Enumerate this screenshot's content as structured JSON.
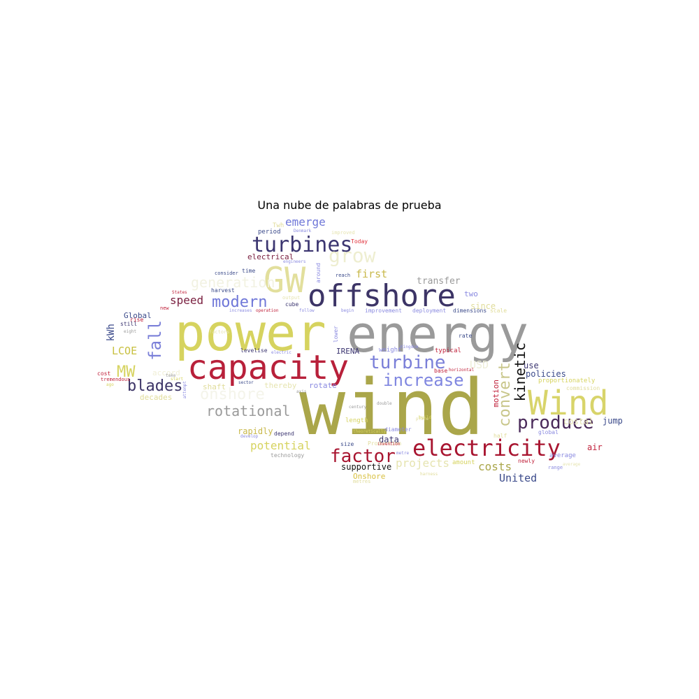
{
  "title": "Una nube de palabras de prueba",
  "words": [
    {
      "text": "wind",
      "color": "#aaa64a"
    },
    {
      "text": "power",
      "color": "#d6d35f"
    },
    {
      "text": "energy",
      "color": "#9a9a9a"
    },
    {
      "text": "capacity",
      "color": "#b8203a"
    },
    {
      "text": "offshore",
      "color": "#3c3466"
    },
    {
      "text": "Wind",
      "color": "#d8d46a"
    },
    {
      "text": "electricity",
      "color": "#a81530"
    },
    {
      "text": "GW",
      "color": "#e2df9c"
    },
    {
      "text": "turbines",
      "color": "#3b3570"
    },
    {
      "text": "turbine",
      "color": "#7a7fd8"
    },
    {
      "text": "increase",
      "color": "#7f86e0"
    },
    {
      "text": "factor",
      "color": "#a81530"
    },
    {
      "text": "produce",
      "color": "#4a2a5a"
    },
    {
      "text": "modern",
      "color": "#6f77d8"
    },
    {
      "text": "blades",
      "color": "#3c3466"
    },
    {
      "text": "rotational",
      "color": "#9a9a9a"
    },
    {
      "text": "grow",
      "color": "#eeeed0"
    },
    {
      "text": "generation",
      "color": "#f2f2e2"
    },
    {
      "text": "onshore",
      "color": "#f4f4ea"
    },
    {
      "text": "fall",
      "color": "#7a7fd8"
    },
    {
      "text": "convert",
      "color": "#c8c68a"
    },
    {
      "text": "kinetic",
      "color": "#111111"
    },
    {
      "text": "MW",
      "color": "#d6d35f"
    },
    {
      "text": "speed",
      "color": "#7a2040"
    },
    {
      "text": "emerge",
      "color": "#6f77d8"
    },
    {
      "text": "potential",
      "color": "#d6d35f"
    },
    {
      "text": "costs",
      "color": "#aaa64a"
    },
    {
      "text": "United",
      "color": "#3b4a8a"
    },
    {
      "text": "projects",
      "color": "#e6e4b0"
    },
    {
      "text": "first",
      "color": "#c8b84a"
    },
    {
      "text": "LCOE",
      "color": "#c8c040"
    },
    {
      "text": "kWh",
      "color": "#3b4a8a"
    },
    {
      "text": "transfer",
      "color": "#9a9a9a"
    },
    {
      "text": "USD",
      "color": "#eeeed8"
    },
    {
      "text": "since",
      "color": "#e0dc9a"
    },
    {
      "text": "use",
      "color": "#3b3570"
    },
    {
      "text": "policies",
      "color": "#3b4a8a"
    },
    {
      "text": "jump",
      "color": "#3b4a8a"
    },
    {
      "text": "air",
      "color": "#c0203a"
    },
    {
      "text": "data",
      "color": "#3b3570"
    },
    {
      "text": "rapidly",
      "color": "#c8b84a"
    },
    {
      "text": "shaft",
      "color": "#e0dc9a"
    },
    {
      "text": "thereby",
      "color": "#e6e4b0"
    },
    {
      "text": "rotate",
      "color": "#8a8ae0"
    },
    {
      "text": "decades",
      "color": "#e0dc9a"
    },
    {
      "text": "accord",
      "color": "#f0efd6"
    },
    {
      "text": "supportive",
      "color": "#111111"
    },
    {
      "text": "Onshore",
      "color": "#d8c040"
    },
    {
      "text": "two",
      "color": "#8a8ae0"
    },
    {
      "text": "Global",
      "color": "#3b4a8a"
    },
    {
      "text": "electrical",
      "color": "#7a2040"
    },
    {
      "text": "IRENA",
      "color": "#3b3570"
    },
    {
      "text": "motion",
      "color": "#c0203a"
    },
    {
      "text": "Twh",
      "color": "#e0dc9a"
    },
    {
      "text": "period",
      "color": "#3b4a8a"
    },
    {
      "text": "Today",
      "color": "#e0303a"
    },
    {
      "text": "time",
      "color": "#3b4a8a"
    },
    {
      "text": "harvest",
      "color": "#3b4a8a"
    },
    {
      "text": "cube",
      "color": "#3b3570"
    },
    {
      "text": "rise",
      "color": "#c0203a"
    },
    {
      "text": "still",
      "color": "#3b3570"
    },
    {
      "text": "new",
      "color": "#c0203a"
    },
    {
      "text": "weight",
      "color": "#8a8ae0"
    },
    {
      "text": "typical",
      "color": "#c0203a"
    },
    {
      "text": "rate",
      "color": "#3b4a8a"
    },
    {
      "text": "levelise",
      "color": "#3b3570"
    },
    {
      "text": "reach",
      "color": "#3b4a8a"
    },
    {
      "text": "improvement",
      "color": "#8a8ae0"
    },
    {
      "text": "deployment",
      "color": "#8a8ae0"
    },
    {
      "text": "scale",
      "color": "#e0dc9a"
    },
    {
      "text": "dimensions",
      "color": "#3b4a8a"
    },
    {
      "text": "proportionately",
      "color": "#d6d35f"
    },
    {
      "text": "commission",
      "color": "#e0dc9a"
    },
    {
      "text": "average",
      "color": "#8a8ae0"
    },
    {
      "text": "global",
      "color": "#8a8ae0"
    },
    {
      "text": "half",
      "color": "#e0dc9a"
    },
    {
      "text": "newly",
      "color": "#c0203a"
    },
    {
      "text": "range",
      "color": "#8a8ae0"
    },
    {
      "text": "amount",
      "color": "#d6d35f"
    },
    {
      "text": "length",
      "color": "#d6d35f"
    },
    {
      "text": "diameter",
      "color": "#8a8ae0"
    },
    {
      "text": "depend",
      "color": "#3b3570"
    },
    {
      "text": "size",
      "color": "#3b4a8a"
    },
    {
      "text": "Production",
      "color": "#e0dc9a"
    },
    {
      "text": "technology",
      "color": "#9a9a9a"
    },
    {
      "text": "metres",
      "color": "#e0dc9a"
    },
    {
      "text": "tremendous",
      "color": "#c0203a"
    },
    {
      "text": "cost",
      "color": "#c0203a"
    },
    {
      "text": "base",
      "color": "#c0203a"
    },
    {
      "text": "horizontal",
      "color": "#c0203a"
    },
    {
      "text": "sector",
      "color": "#3b4a8a"
    },
    {
      "text": "invention",
      "color": "#c0203a"
    },
    {
      "text": "output",
      "color": "#e6e4b0"
    },
    {
      "text": "factors",
      "color": "#e6e4b0"
    },
    {
      "text": "increases",
      "color": "#8a8ae0"
    },
    {
      "text": "operation",
      "color": "#c0203a"
    },
    {
      "text": "consider",
      "color": "#3b4a8a"
    },
    {
      "text": "around",
      "color": "#8a8ae0"
    },
    {
      "text": "lower",
      "color": "#8a8ae0"
    },
    {
      "text": "electric",
      "color": "#8a8ae0"
    },
    {
      "text": "Kingdom",
      "color": "#8a8ae0"
    },
    {
      "text": "States",
      "color": "#c0203a"
    },
    {
      "text": "eight",
      "color": "#9a9a9a"
    },
    {
      "text": "take",
      "color": "#9a9a9a"
    },
    {
      "text": "ago",
      "color": "#d6d35f"
    },
    {
      "text": "start",
      "color": "#d6d35f"
    },
    {
      "text": "attempt",
      "color": "#8a8ae0"
    },
    {
      "text": "follow",
      "color": "#8a8ae0"
    },
    {
      "text": "begin",
      "color": "#8a8ae0"
    },
    {
      "text": "century",
      "color": "#9a9a9a"
    },
    {
      "text": "double",
      "color": "#9a9a9a"
    },
    {
      "text": "place",
      "color": "#e0dc9a"
    },
    {
      "text": "build",
      "color": "#d6d35f"
    },
    {
      "text": "Denmark",
      "color": "#8a8ae0"
    },
    {
      "text": "engineers",
      "color": "#8a8ae0"
    },
    {
      "text": "improved",
      "color": "#e6e4b0"
    },
    {
      "text": "theoretically",
      "color": "#d6d35f"
    },
    {
      "text": "harness",
      "color": "#e0dc9a"
    },
    {
      "text": "costal",
      "color": "#e6e4b0"
    },
    {
      "text": "axis",
      "color": "#9a9a9a"
    },
    {
      "text": "metre",
      "color": "#8a8ae0"
    },
    {
      "text": "develop",
      "color": "#8a8ae0"
    },
    {
      "text": "average",
      "color": "#e6e4b0"
    }
  ]
}
